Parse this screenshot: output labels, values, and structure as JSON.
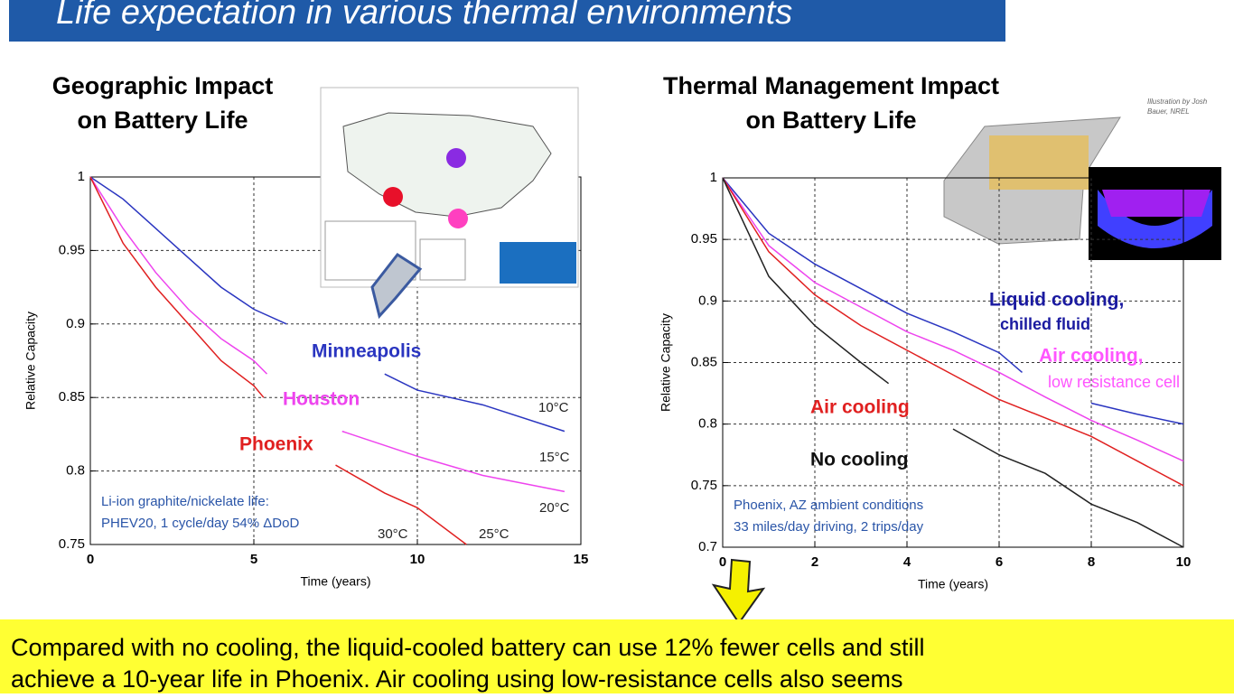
{
  "slide": {
    "title": "Life expectation in various thermal environments",
    "footer": [
      "Compared with no cooling, the liquid-cooled battery can use 12% fewer cells and still",
      "achieve a 10-year life in Phoenix. Air cooling using low-resistance cells also seems"
    ],
    "credit": [
      "Illustration by Josh",
      "Bauer, NREL"
    ]
  },
  "chart_data": [
    {
      "type": "line",
      "title": [
        "Geographic Impact",
        "on Battery Life"
      ],
      "xlabel": "Time (years)",
      "ylabel": "Relative Capacity",
      "xlim": [
        0,
        15
      ],
      "ylim": [
        0.75,
        1
      ],
      "xticks": [
        0,
        5,
        10,
        15
      ],
      "yticks": [
        0.75,
        0.8,
        0.85,
        0.9,
        0.95,
        1
      ],
      "grid": true,
      "series": [
        {
          "name": "Minneapolis",
          "color": "#2a35c0",
          "x": [
            0,
            1,
            2,
            3,
            4,
            5,
            6,
            7,
            9,
            10,
            12,
            14.5
          ],
          "values": [
            1,
            0.985,
            0.965,
            0.945,
            0.925,
            0.91,
            0.9,
            null,
            0.866,
            0.855,
            0.845,
            0.827
          ]
        },
        {
          "name": "Houston",
          "color": "#ee44ee",
          "x": [
            0,
            1,
            2,
            3,
            4,
            5,
            5.4,
            6,
            7.7,
            10,
            12,
            14.5
          ],
          "values": [
            1,
            0.965,
            0.935,
            0.91,
            0.89,
            0.875,
            0.866,
            null,
            0.827,
            0.81,
            0.797,
            0.786
          ]
        },
        {
          "name": "Phoenix",
          "color": "#e02020",
          "x": [
            0,
            1,
            2,
            3,
            4,
            5,
            5.3,
            6,
            7.5,
            9,
            10,
            11.5
          ],
          "values": [
            1,
            0.955,
            0.925,
            0.9,
            0.875,
            0.858,
            0.85,
            null,
            0.804,
            0.785,
            0.775,
            0.75
          ]
        }
      ],
      "annotations": [
        "10°C",
        "15°C",
        "20°C",
        "25°C",
        "30°C",
        "Li-ion graphite/nickelate life:",
        "PHEV20, 1 cycle/day 54% ΔDoD"
      ]
    },
    {
      "type": "line",
      "title": [
        "Thermal Management Impact",
        "on Battery Life"
      ],
      "xlabel": "Time (years)",
      "ylabel": "Relative Capacity",
      "xlim": [
        0,
        10
      ],
      "ylim": [
        0.7,
        1
      ],
      "xticks": [
        0,
        2,
        4,
        6,
        8,
        10
      ],
      "yticks": [
        0.7,
        0.75,
        0.8,
        0.85,
        0.9,
        0.95,
        1
      ],
      "grid": true,
      "series": [
        {
          "name": "Liquid cooling,",
          "color": "#2a35c0",
          "x": [
            0,
            1,
            2,
            3,
            4,
            5,
            6,
            6.5,
            7,
            8,
            9,
            10
          ],
          "values": [
            1,
            0.955,
            0.93,
            0.91,
            0.89,
            0.875,
            0.858,
            0.842,
            null,
            0.817,
            0.808,
            0.8
          ]
        },
        {
          "name": "Air cooling,",
          "color": "#ee44ee",
          "x": [
            0,
            1,
            2,
            3,
            4,
            5,
            6,
            7,
            8,
            9,
            10
          ],
          "values": [
            1,
            0.945,
            0.915,
            0.895,
            0.875,
            0.86,
            0.842,
            0.822,
            0.803,
            0.787,
            0.77
          ]
        },
        {
          "name": "Air cooling",
          "color": "#e02020",
          "x": [
            0,
            1,
            2,
            3,
            4,
            5,
            6,
            7,
            8,
            9,
            10
          ],
          "values": [
            1,
            0.94,
            0.905,
            0.88,
            0.86,
            0.84,
            0.82,
            0.805,
            0.79,
            0.77,
            0.75
          ]
        },
        {
          "name": "No cooling",
          "color": "#222222",
          "x": [
            0,
            1,
            2,
            3,
            3.6,
            4,
            5,
            6,
            7,
            8,
            9,
            10
          ],
          "values": [
            1,
            0.92,
            0.88,
            0.85,
            0.833,
            null,
            0.796,
            0.775,
            0.76,
            0.735,
            0.72,
            0.7
          ]
        }
      ],
      "annotations": [
        "chilled fluid",
        "low resistance cell",
        "Phoenix, AZ ambient conditions",
        "33 miles/day driving, 2 trips/day"
      ]
    }
  ]
}
